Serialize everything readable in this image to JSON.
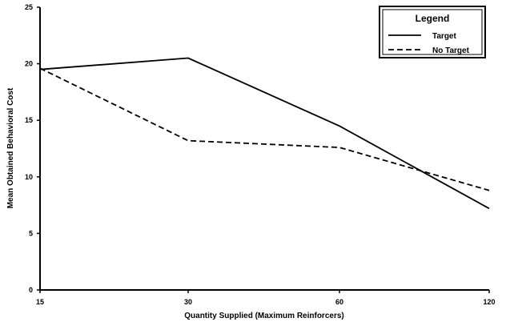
{
  "chart_data": {
    "type": "line",
    "title": "",
    "xlabel": "Quantity Supplied (Maximum Reinforcers)",
    "ylabel": "Mean Obtained Behavioral Cost",
    "x": [
      15,
      30,
      60,
      120
    ],
    "x_tick_labels": [
      "15",
      "30",
      "60",
      "120"
    ],
    "y_tick_labels": [
      "0",
      "5",
      "10",
      "15",
      "20",
      "25"
    ],
    "ylim": [
      0,
      25
    ],
    "grid": false,
    "legend": {
      "title": "Legend",
      "placement": "top-right"
    },
    "series": [
      {
        "name": "Target",
        "style": "solid",
        "color": "#000000",
        "values": [
          19.5,
          20.5,
          14.5,
          7.2
        ]
      },
      {
        "name": "No Target",
        "style": "dashed",
        "color": "#000000",
        "values": [
          19.6,
          13.2,
          12.6,
          8.8
        ]
      }
    ]
  }
}
